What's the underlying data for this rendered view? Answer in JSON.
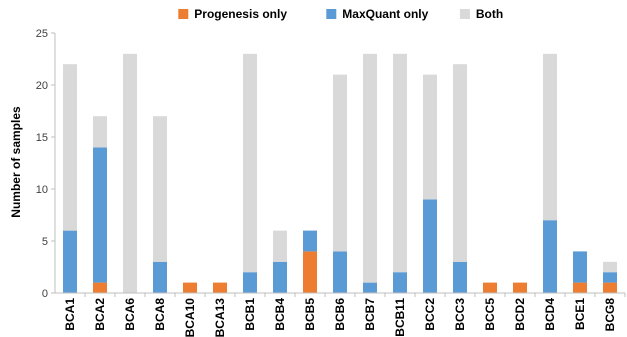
{
  "chart_data": {
    "type": "bar",
    "stacked": true,
    "title": "",
    "xlabel": "",
    "ylabel": "Number of samples",
    "ylim": [
      0,
      25
    ],
    "yticks": [
      0,
      5,
      10,
      15,
      20,
      25
    ],
    "grid": false,
    "legend_position": "top",
    "categories": [
      "BCA1",
      "BCA2",
      "BCA6",
      "BCA8",
      "BCA10",
      "BCA13",
      "BCB1",
      "BCB4",
      "BCB5",
      "BCB6",
      "BCB7",
      "BCB11",
      "BCC2",
      "BCC3",
      "BCC5",
      "BCD2",
      "BCD4",
      "BCE1",
      "BCG8"
    ],
    "series": [
      {
        "name": "Progenesis only",
        "color": "#ED7D31",
        "values": [
          0,
          1,
          0,
          0,
          1,
          1,
          0,
          0,
          4,
          0,
          0,
          0,
          0,
          0,
          1,
          1,
          0,
          1,
          1
        ]
      },
      {
        "name": "MaxQuant only",
        "color": "#5B9BD5",
        "values": [
          6,
          13,
          0,
          3,
          0,
          0,
          2,
          3,
          2,
          4,
          1,
          2,
          9,
          3,
          0,
          0,
          7,
          3,
          1
        ]
      },
      {
        "name": "Both",
        "color": "#D9D9D9",
        "values": [
          16,
          3,
          23,
          14,
          0,
          0,
          21,
          3,
          0,
          17,
          22,
          21,
          12,
          19,
          0,
          0,
          16,
          0,
          1
        ]
      }
    ]
  }
}
